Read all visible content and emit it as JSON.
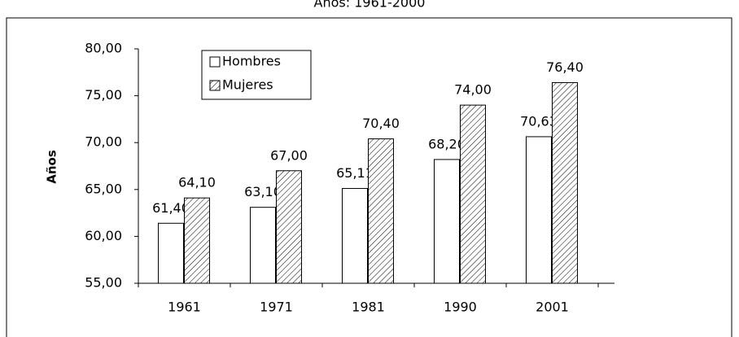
{
  "chart_data": {
    "type": "bar",
    "title": "Años: 1961-2000",
    "y_label": "Años",
    "categories": [
      "1961",
      "1971",
      "1981",
      "1990",
      "2001"
    ],
    "series": [
      {
        "name": "Hombres",
        "color": "#ffffff",
        "pattern": "solid",
        "values": [
          61.4,
          63.1,
          65.11,
          68.2,
          70.63
        ],
        "value_labels": [
          "61,40",
          "63,10",
          "65,11",
          "68,20",
          "70,63"
        ]
      },
      {
        "name": "Mujeres",
        "color": "#ffffff",
        "pattern": "hatch",
        "values": [
          64.1,
          67.0,
          70.4,
          74.0,
          76.4
        ],
        "value_labels": [
          "64,10",
          "67,00",
          "70,40",
          "74,00",
          "76,40"
        ]
      }
    ],
    "ylim": [
      55,
      80
    ],
    "yticks": [
      {
        "value": 55,
        "label": "55,00"
      },
      {
        "value": 60,
        "label": "60,00"
      },
      {
        "value": 65,
        "label": "65,00"
      },
      {
        "value": 70,
        "label": "70,00"
      },
      {
        "value": 75,
        "label": "75,00"
      },
      {
        "value": 80,
        "label": "80,00"
      }
    ],
    "grid": false,
    "legend": "top-left"
  }
}
